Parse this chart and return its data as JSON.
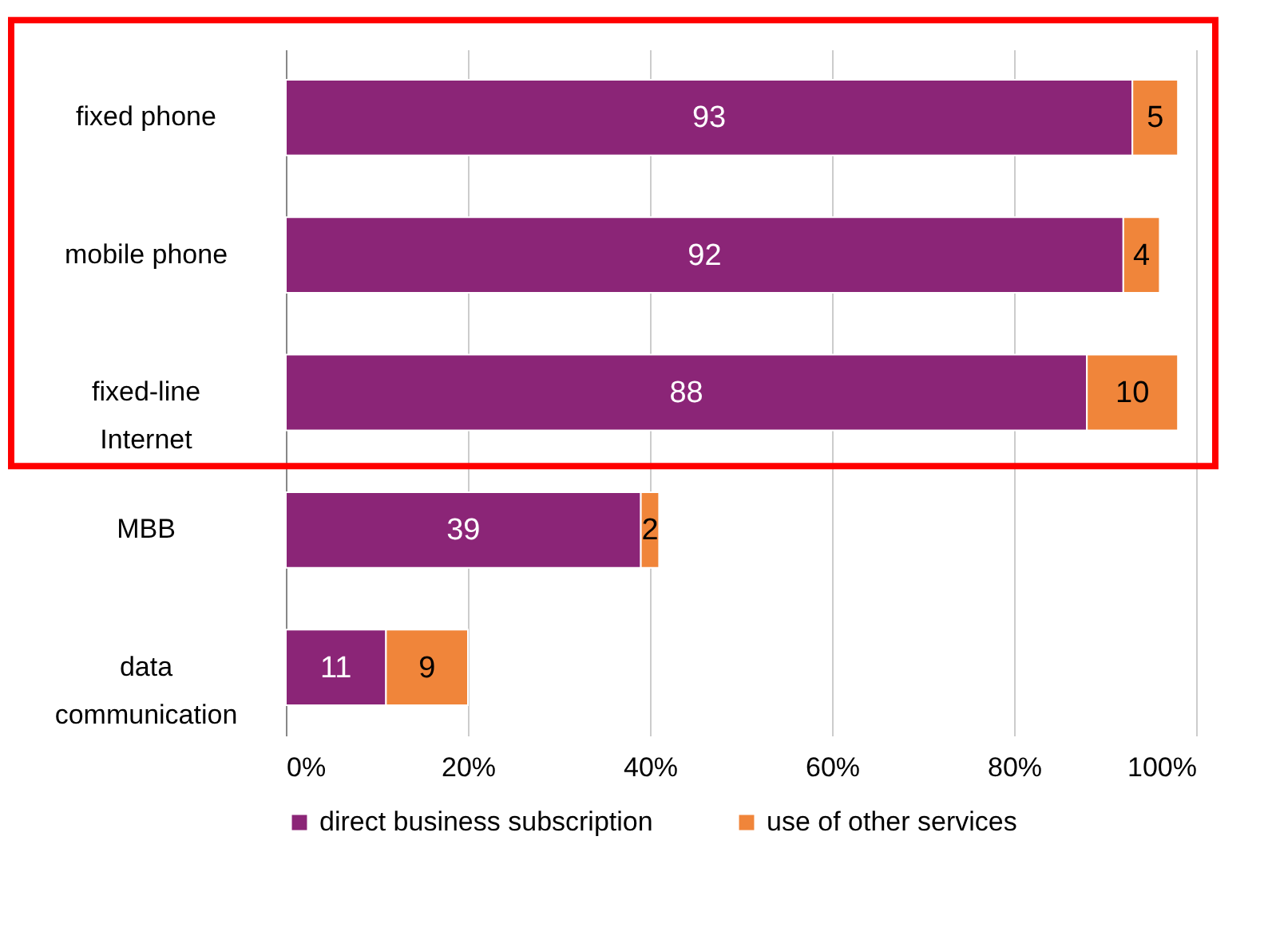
{
  "chart_data": {
    "type": "bar",
    "orientation": "horizontal",
    "stacked": true,
    "categories": [
      "fixed phone",
      "mobile phone",
      "fixed-line\nInternet",
      "MBB",
      "data\ncommunication"
    ],
    "series": [
      {
        "name": "direct business subscription",
        "color": "#8b2577",
        "values": [
          93,
          92,
          88,
          39,
          11
        ]
      },
      {
        "name": "use of other services",
        "color": "#f0853a",
        "values": [
          5,
          4,
          10,
          2,
          9
        ]
      }
    ],
    "xlim": [
      0,
      100
    ],
    "xticks": [
      {
        "value": 0,
        "label": "0%"
      },
      {
        "value": 20,
        "label": "20%"
      },
      {
        "value": 40,
        "label": "40%"
      },
      {
        "value": 60,
        "label": "60%"
      },
      {
        "value": 80,
        "label": "80%"
      },
      {
        "value": 100,
        "label": "100%"
      }
    ],
    "grid": "x",
    "legend": "bottom",
    "data_labels": true
  }
}
